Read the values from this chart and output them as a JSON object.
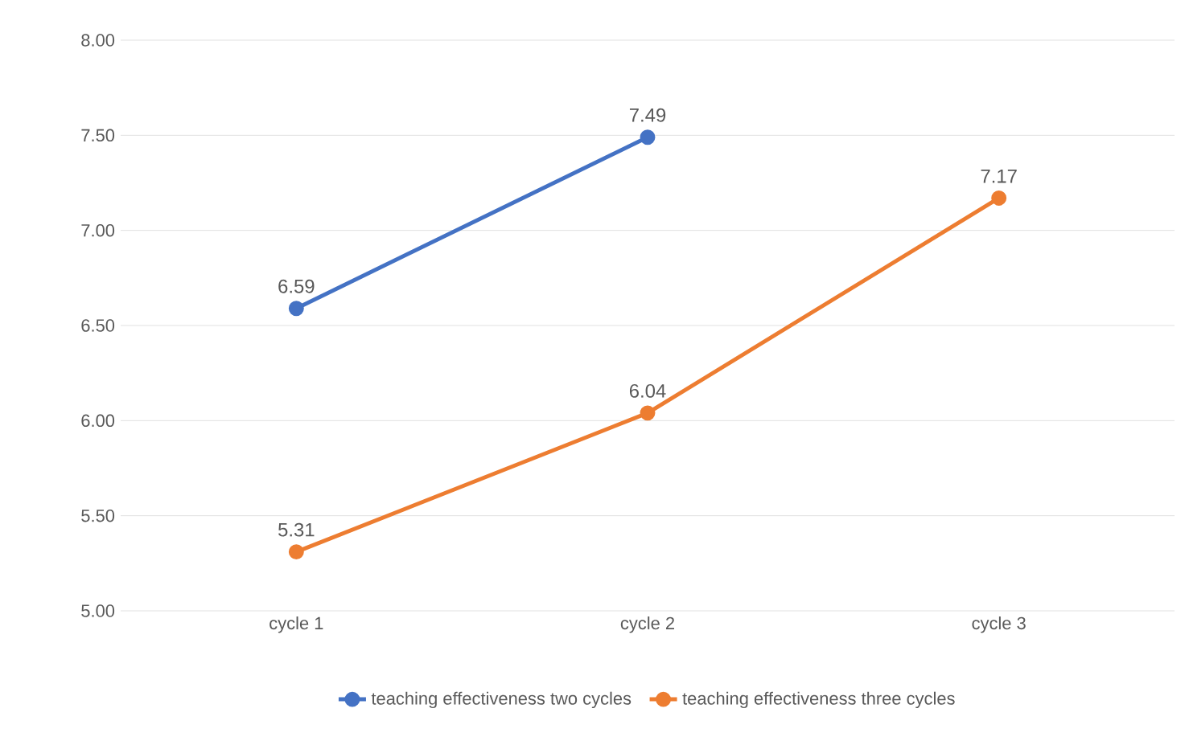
{
  "chart_data": {
    "type": "line",
    "categories": [
      "cycle 1",
      "cycle 2",
      "cycle 3"
    ],
    "series": [
      {
        "name": "teaching effectiveness two cycles",
        "color": "#4472c4",
        "values": [
          6.59,
          7.49,
          null
        ]
      },
      {
        "name": "teaching effectiveness three cycles",
        "color": "#ed7d31",
        "values": [
          5.31,
          6.04,
          7.17
        ]
      }
    ],
    "ylim": [
      5,
      8
    ],
    "yticks": [
      {
        "value": 5,
        "label": "5.00"
      },
      {
        "value": 5.5,
        "label": "5.50"
      },
      {
        "value": 6,
        "label": "6.00"
      },
      {
        "value": 6.5,
        "label": "6.50"
      },
      {
        "value": 7,
        "label": "7.00"
      },
      {
        "value": 7.5,
        "label": "7.50"
      },
      {
        "value": 8,
        "label": "8.00"
      }
    ],
    "grid": "y",
    "legend": "bottom",
    "marker": "circle",
    "line_style": "solid",
    "data_labels": true
  }
}
